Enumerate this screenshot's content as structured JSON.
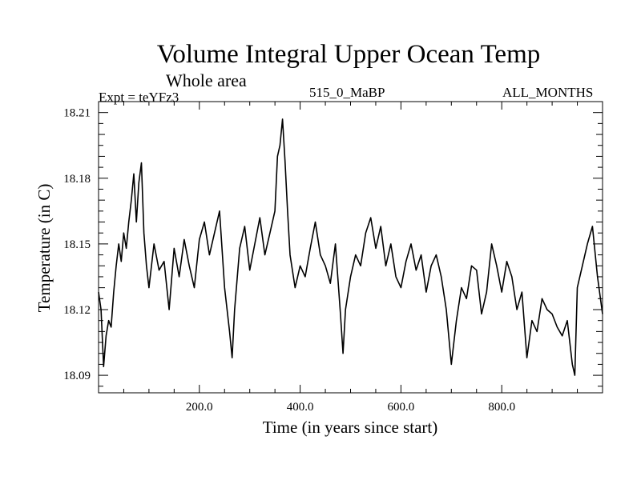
{
  "chart_data": {
    "type": "line",
    "title": "Volume Integral Upper Ocean Temp",
    "subtitle": "Whole area",
    "experiment": "Expt = teYFz3",
    "run": "515_0_MaBP",
    "months": "ALL_MONTHS",
    "xlabel": "Time (in years since start)",
    "ylabel": "Temperature (in C)",
    "xlim": [
      0,
      1000
    ],
    "ylim": [
      18.082,
      18.215
    ],
    "xticks": [
      200,
      400,
      600,
      800
    ],
    "xtick_labels": [
      "200.0",
      "400.0",
      "600.0",
      "800.0"
    ],
    "yticks": [
      18.09,
      18.12,
      18.15,
      18.18,
      18.21
    ],
    "ytick_labels": [
      "18.09",
      "18.12",
      "18.15",
      "18.18",
      "18.21"
    ],
    "grid": false,
    "series": [
      {
        "name": "Volume Integral Upper Ocean Temp",
        "x": [
          0,
          5,
          10,
          15,
          20,
          25,
          30,
          35,
          40,
          45,
          50,
          55,
          60,
          65,
          70,
          75,
          80,
          85,
          90,
          95,
          100,
          110,
          120,
          130,
          140,
          150,
          160,
          170,
          180,
          190,
          200,
          210,
          220,
          230,
          240,
          250,
          260,
          265,
          270,
          280,
          290,
          300,
          310,
          320,
          330,
          340,
          350,
          355,
          360,
          365,
          370,
          375,
          380,
          390,
          400,
          410,
          420,
          430,
          440,
          450,
          460,
          470,
          480,
          485,
          490,
          500,
          510,
          520,
          530,
          540,
          550,
          560,
          570,
          580,
          590,
          600,
          610,
          620,
          630,
          640,
          650,
          660,
          670,
          680,
          690,
          700,
          710,
          720,
          730,
          740,
          750,
          760,
          770,
          780,
          790,
          800,
          810,
          820,
          830,
          840,
          850,
          860,
          870,
          880,
          890,
          900,
          910,
          920,
          930,
          940,
          945,
          950,
          960,
          970,
          980,
          990,
          1000
        ],
        "values": [
          18.128,
          18.12,
          18.094,
          18.108,
          18.115,
          18.112,
          18.128,
          18.14,
          18.15,
          18.142,
          18.155,
          18.148,
          18.16,
          18.17,
          18.182,
          18.16,
          18.178,
          18.187,
          18.155,
          18.14,
          18.13,
          18.15,
          18.138,
          18.142,
          18.12,
          18.148,
          18.135,
          18.152,
          18.14,
          18.13,
          18.152,
          18.16,
          18.145,
          18.155,
          18.165,
          18.13,
          18.11,
          18.098,
          18.12,
          18.148,
          18.158,
          18.138,
          18.15,
          18.162,
          18.145,
          18.155,
          18.165,
          18.19,
          18.195,
          18.207,
          18.188,
          18.165,
          18.145,
          18.13,
          18.14,
          18.135,
          18.148,
          18.16,
          18.145,
          18.14,
          18.132,
          18.15,
          18.118,
          18.1,
          18.12,
          18.135,
          18.145,
          18.14,
          18.155,
          18.162,
          18.148,
          18.158,
          18.14,
          18.15,
          18.135,
          18.13,
          18.142,
          18.15,
          18.138,
          18.145,
          18.128,
          18.14,
          18.145,
          18.135,
          18.12,
          18.095,
          18.115,
          18.13,
          18.125,
          18.14,
          18.138,
          18.118,
          18.128,
          18.15,
          18.14,
          18.128,
          18.142,
          18.135,
          18.12,
          18.128,
          18.098,
          18.115,
          18.11,
          18.125,
          18.12,
          18.118,
          18.112,
          18.108,
          18.115,
          18.095,
          18.09,
          18.13,
          18.14,
          18.15,
          18.158,
          18.135,
          18.118
        ]
      }
    ]
  }
}
